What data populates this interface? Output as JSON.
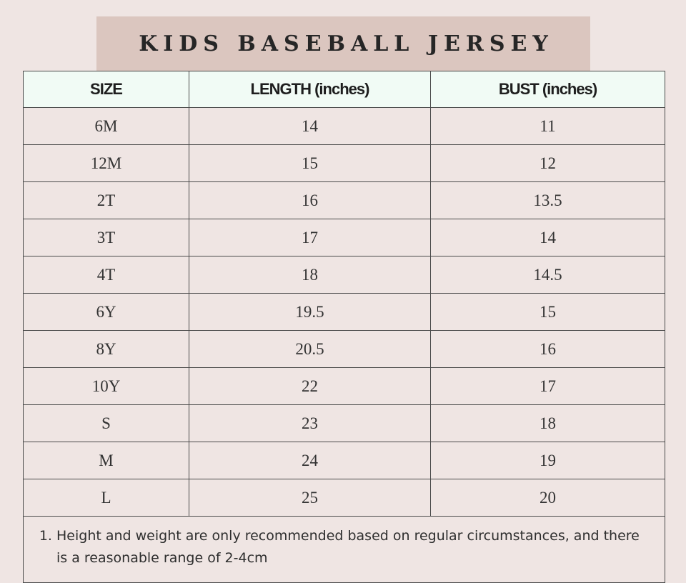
{
  "title": "KIDS BASEBALL JERSEY",
  "colors": {
    "background": "#efe5e3",
    "banner": "#dbc6bf",
    "header_row": "#f1fbf5",
    "border": "#4a4a4a"
  },
  "table": {
    "headers": [
      "SIZE",
      "LENGTH (inches)",
      "BUST (inches)"
    ],
    "rows": [
      [
        "6M",
        "14",
        "11"
      ],
      [
        "12M",
        "15",
        "12"
      ],
      [
        "2T",
        "16",
        "13.5"
      ],
      [
        "3T",
        "17",
        "14"
      ],
      [
        "4T",
        "18",
        "14.5"
      ],
      [
        "6Y",
        "19.5",
        "15"
      ],
      [
        "8Y",
        "20.5",
        "16"
      ],
      [
        "10Y",
        "22",
        "17"
      ],
      [
        "S",
        "23",
        "18"
      ],
      [
        "M",
        "24",
        "19"
      ],
      [
        "L",
        "25",
        "20"
      ]
    ]
  },
  "notes": [
    "Height and weight are only recommended based on regular circumstances, and there is a reasonable range of 2-4cm"
  ]
}
